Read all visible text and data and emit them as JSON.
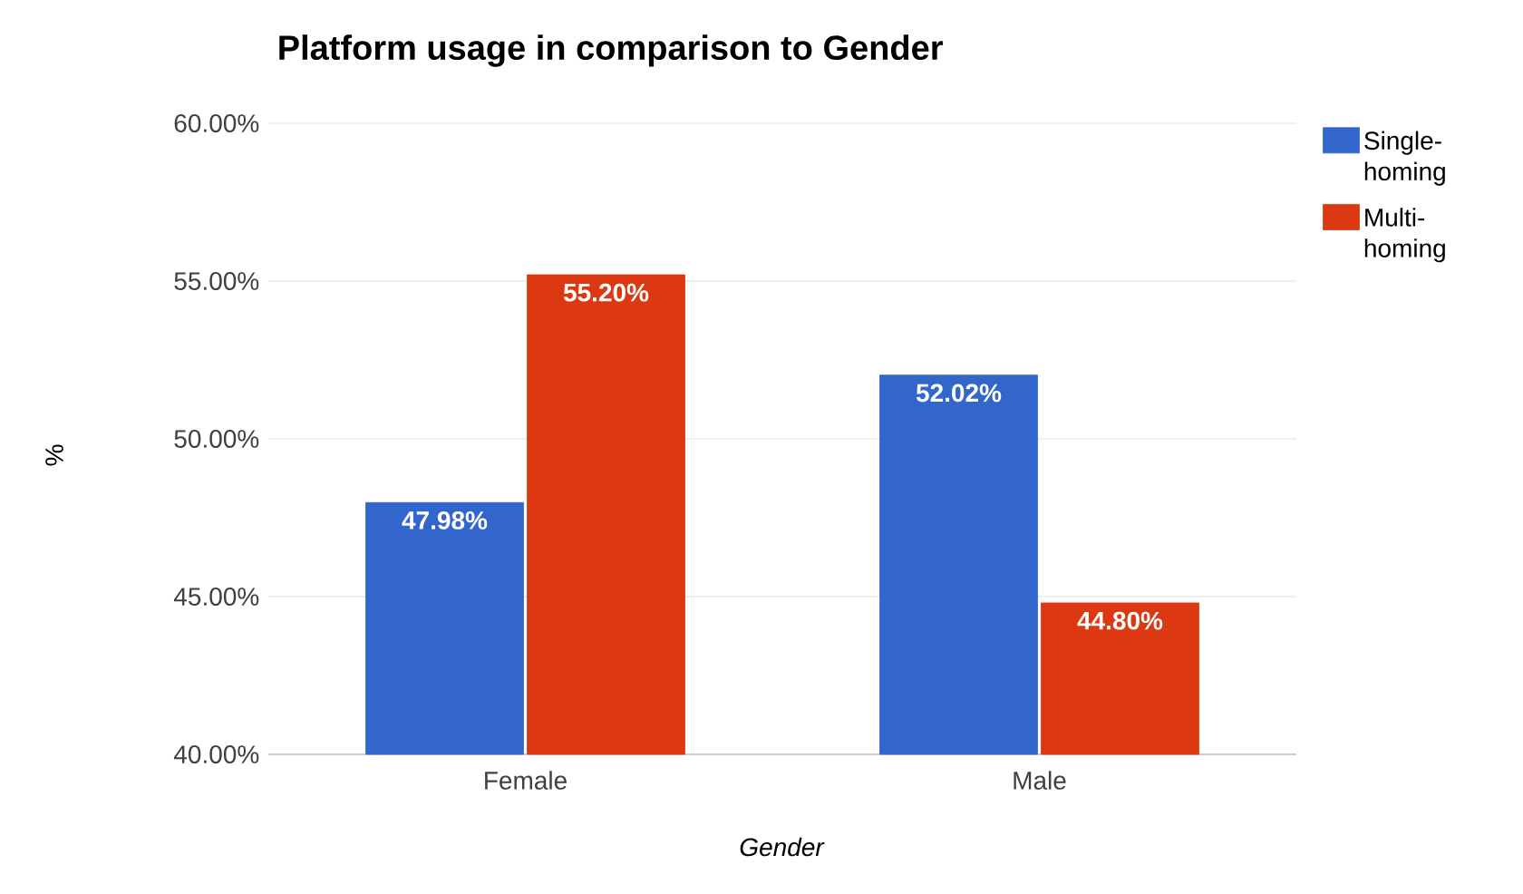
{
  "chart_data": {
    "type": "bar",
    "title": "Platform usage in comparison to Gender",
    "xlabel": "Gender",
    "ylabel": "%",
    "categories": [
      "Female",
      "Male"
    ],
    "series": [
      {
        "name": "Single-homing",
        "color": "#3366cc",
        "values": [
          47.98,
          52.02
        ],
        "value_labels": [
          "47.98%",
          "52.02%"
        ]
      },
      {
        "name": "Multi-homing",
        "color": "#dc3912",
        "values": [
          55.2,
          44.8
        ],
        "value_labels": [
          "55.20%",
          "44.80%"
        ]
      }
    ],
    "ylim": [
      40,
      60
    ],
    "yticks": [
      {
        "value": 40,
        "label": "40.00%"
      },
      {
        "value": 45,
        "label": "45.00%"
      },
      {
        "value": 50,
        "label": "50.00%"
      },
      {
        "value": 55,
        "label": "55.00%"
      },
      {
        "value": 60,
        "label": "60.00%"
      }
    ],
    "grid": "y",
    "legend": "right"
  }
}
